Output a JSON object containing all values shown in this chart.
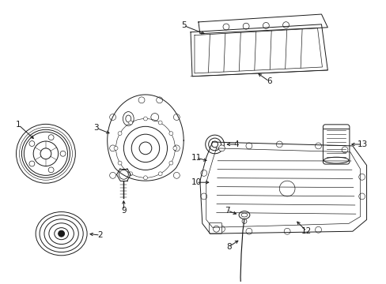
{
  "background_color": "#ffffff",
  "line_color": "#1a1a1a",
  "fig_width": 4.89,
  "fig_height": 3.6,
  "dpi": 100,
  "lw": 0.7
}
